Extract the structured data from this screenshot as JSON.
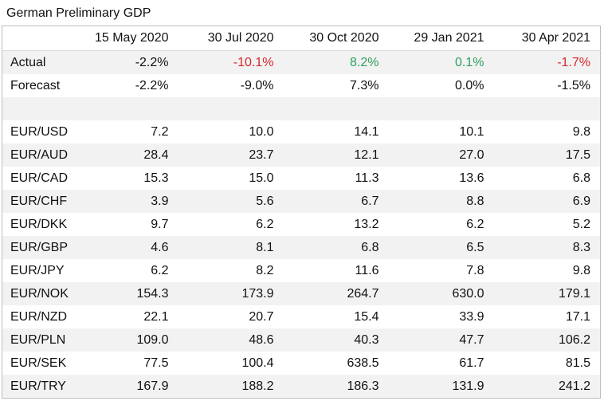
{
  "title": "German Preliminary GDP",
  "columns": [
    "15 May 2020",
    "30 Jul 2020",
    "30 Oct 2020",
    "29 Jan 2021",
    "30 Apr 2021"
  ],
  "actual": {
    "label": "Actual",
    "values": [
      "-2.2%",
      "-10.1%",
      "8.2%",
      "0.1%",
      "-1.7%"
    ],
    "tones": [
      "neutral",
      "negative",
      "positive",
      "positive",
      "negative"
    ]
  },
  "forecast": {
    "label": "Forecast",
    "values": [
      "-2.2%",
      "-9.0%",
      "7.3%",
      "0.0%",
      "-1.5%"
    ]
  },
  "pairs": [
    {
      "name": "EUR/USD",
      "values": [
        "7.2",
        "10.0",
        "14.1",
        "10.1",
        "9.8"
      ]
    },
    {
      "name": "EUR/AUD",
      "values": [
        "28.4",
        "23.7",
        "12.1",
        "27.0",
        "17.5"
      ]
    },
    {
      "name": "EUR/CAD",
      "values": [
        "15.3",
        "15.0",
        "11.3",
        "13.6",
        "6.8"
      ]
    },
    {
      "name": "EUR/CHF",
      "values": [
        "3.9",
        "5.6",
        "6.7",
        "8.8",
        "6.9"
      ]
    },
    {
      "name": "EUR/DKK",
      "values": [
        "9.7",
        "6.2",
        "13.2",
        "6.2",
        "5.2"
      ]
    },
    {
      "name": "EUR/GBP",
      "values": [
        "4.6",
        "8.1",
        "6.8",
        "6.5",
        "8.3"
      ]
    },
    {
      "name": "EUR/JPY",
      "values": [
        "6.2",
        "8.2",
        "11.6",
        "7.8",
        "9.8"
      ]
    },
    {
      "name": "EUR/NOK",
      "values": [
        "154.3",
        "173.9",
        "264.7",
        "630.0",
        "179.1"
      ]
    },
    {
      "name": "EUR/NZD",
      "values": [
        "22.1",
        "20.7",
        "15.4",
        "33.9",
        "17.1"
      ]
    },
    {
      "name": "EUR/PLN",
      "values": [
        "109.0",
        "48.6",
        "40.3",
        "47.7",
        "106.2"
      ]
    },
    {
      "name": "EUR/SEK",
      "values": [
        "77.5",
        "100.4",
        "638.5",
        "61.7",
        "81.5"
      ]
    },
    {
      "name": "EUR/TRY",
      "values": [
        "167.9",
        "188.2",
        "186.3",
        "131.9",
        "241.2"
      ]
    }
  ],
  "colors": {
    "negative": "#d9262b",
    "positive": "#2e9e5b",
    "shade": "#f2f2f2"
  }
}
